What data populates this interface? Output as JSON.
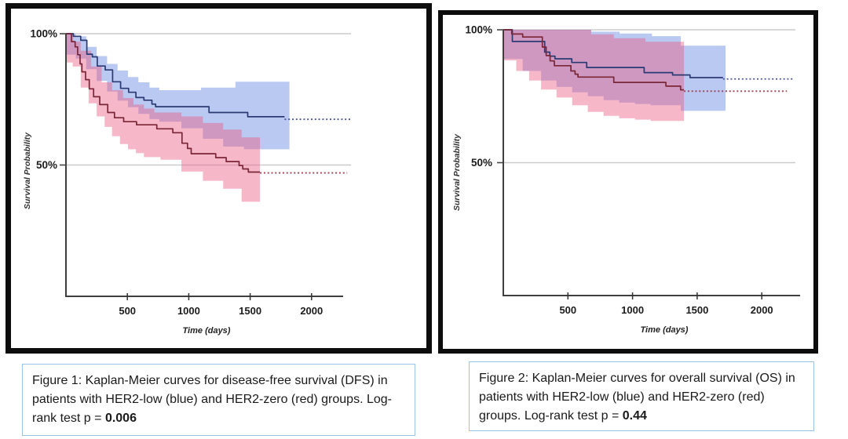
{
  "page": {
    "background": "#ffffff"
  },
  "figures": [
    {
      "id": "figure-1",
      "caption_text": "Figure 1: Kaplan-Meier curves for disease-free survival (DFS) in patients with HER2-low (blue) and HER2-zero (red) groups. Log-rank test p = ",
      "caption_p": "0.006",
      "caption_border_color": "#9dc3e6",
      "frame_border_color": "#0d0d0d"
    },
    {
      "id": "figure-2",
      "caption_text": "Figure 2: Kaplan-Meier curves for overall survival (OS) in patients with HER2-low (blue) and HER2-zero (red) groups. Log-rank test p = ",
      "caption_p": "0.44",
      "caption_border_color": "#9dc3e6",
      "frame_border_color": "#0d0d0d"
    }
  ],
  "chart_data": [
    {
      "type": "line",
      "subtype": "kaplan-meier-step",
      "name": "dfs-chart",
      "xlabel": "Time (days)",
      "ylabel": "Survival Probability",
      "x_ticks": [
        500,
        1000,
        1500,
        2000
      ],
      "y_ticks": [
        {
          "label": "100%",
          "value": 100
        },
        {
          "label": "50%",
          "value": 50
        }
      ],
      "xlim": [
        0,
        2300
      ],
      "ylim_pct": [
        0,
        100
      ],
      "grid": "horizontal-only",
      "grid_color": "#cbcbcb",
      "axis_color": "#3f3f3f",
      "series": [
        {
          "name": "HER2-low",
          "color": "#2a3a72",
          "censor_color": "#4a549a",
          "band_color": "rgba(99,135,224,0.45)",
          "steps": [
            [
              0,
              100
            ],
            [
              60,
              99
            ],
            [
              120,
              97.5
            ],
            [
              170,
              92.2
            ],
            [
              215,
              91.2
            ],
            [
              255,
              87.7
            ],
            [
              320,
              86.2
            ],
            [
              380,
              81.7
            ],
            [
              445,
              79.2
            ],
            [
              510,
              77.7
            ],
            [
              570,
              75.7
            ],
            [
              635,
              74.7
            ],
            [
              700,
              73.2
            ],
            [
              730,
              72.2
            ],
            [
              1165,
              70.0
            ],
            [
              1480,
              68.4
            ],
            [
              1780,
              68.4
            ]
          ],
          "censored": {
            "level": 67.4,
            "from": 1780,
            "to": 2315
          },
          "band": {
            "upper": [
              [
                0,
                100
              ],
              [
                80,
                99
              ],
              [
                165,
                95
              ],
              [
                250,
                91.5
              ],
              [
                335,
                88.5
              ],
              [
                420,
                86
              ],
              [
                505,
                83.5
              ],
              [
                590,
                81.5
              ],
              [
                680,
                79.5
              ],
              [
                760,
                78.5
              ],
              [
                1100,
                79.5
              ],
              [
                1380,
                81.7
              ],
              [
                1820,
                81.7
              ]
            ],
            "lower": [
              [
                0,
                92
              ],
              [
                80,
                90.5
              ],
              [
                165,
                86.5
              ],
              [
                250,
                82
              ],
              [
                335,
                78
              ],
              [
                420,
                74.5
              ],
              [
                505,
                72
              ],
              [
                590,
                69.5
              ],
              [
                680,
                67.5
              ],
              [
                760,
                66.5
              ],
              [
                940,
                64
              ],
              [
                1115,
                60
              ],
              [
                1280,
                57
              ],
              [
                1450,
                56
              ],
              [
                1820,
                56
              ]
            ]
          }
        },
        {
          "name": "HER2-zero",
          "color": "#7a2636",
          "censor_color": "#a04252",
          "band_color": "rgba(233,88,130,0.43)",
          "steps": [
            [
              0,
              100
            ],
            [
              45,
              97
            ],
            [
              75,
              95
            ],
            [
              95,
              92
            ],
            [
              115,
              88.5
            ],
            [
              130,
              85.5
            ],
            [
              160,
              82.5
            ],
            [
              190,
              79
            ],
            [
              225,
              76
            ],
            [
              275,
              73
            ],
            [
              340,
              70
            ],
            [
              395,
              68
            ],
            [
              470,
              66.5
            ],
            [
              575,
              65.3
            ],
            [
              740,
              63.8
            ],
            [
              870,
              62.3
            ],
            [
              945,
              58.3
            ],
            [
              990,
              56.3
            ],
            [
              1020,
              54.3
            ],
            [
              1220,
              52.8
            ],
            [
              1305,
              51.3
            ],
            [
              1410,
              49.8
            ],
            [
              1440,
              48.5
            ],
            [
              1485,
              47.3
            ],
            [
              1580,
              47.3
            ]
          ],
          "censored": {
            "level": 47.0,
            "from": 1580,
            "to": 2290
          },
          "band": {
            "upper": [
              [
                0,
                100
              ],
              [
                60,
                97
              ],
              [
                120,
                93.5
              ],
              [
                205,
                87.5
              ],
              [
                290,
                81.5
              ],
              [
                375,
                78.5
              ],
              [
                465,
                75.5
              ],
              [
                550,
                73
              ],
              [
                635,
                71.5
              ],
              [
                720,
                70
              ],
              [
                940,
                68.5
              ],
              [
                1115,
                66
              ],
              [
                1280,
                63.5
              ],
              [
                1430,
                60.5
              ],
              [
                1580,
                60.5
              ]
            ],
            "lower": [
              [
                0,
                89
              ],
              [
                55,
                87.5
              ],
              [
                120,
                79.5
              ],
              [
                185,
                73.5
              ],
              [
                250,
                68.5
              ],
              [
                315,
                64.5
              ],
              [
                375,
                61
              ],
              [
                440,
                58
              ],
              [
                505,
                56
              ],
              [
                570,
                54.5
              ],
              [
                635,
                53
              ],
              [
                770,
                52
              ],
              [
                940,
                47.5
              ],
              [
                1115,
                44
              ],
              [
                1280,
                41
              ],
              [
                1430,
                36
              ],
              [
                1580,
                35
              ]
            ]
          }
        }
      ]
    },
    {
      "type": "line",
      "subtype": "kaplan-meier-step",
      "name": "os-chart",
      "xlabel": "Time (days)",
      "ylabel": "Survival Probability",
      "x_ticks": [
        500,
        1000,
        1500,
        2000
      ],
      "y_ticks": [
        {
          "label": "100%",
          "value": 100
        },
        {
          "label": "50%",
          "value": 50
        }
      ],
      "xlim": [
        0,
        2300
      ],
      "ylim_pct": [
        0,
        100
      ],
      "grid": "horizontal-only",
      "grid_color": "#cbcbcb",
      "axis_color": "#3f3f3f",
      "series": [
        {
          "name": "HER2-low",
          "color": "#2a3a72",
          "censor_color": "#4a549a",
          "band_color": "rgba(99,135,224,0.45)",
          "steps": [
            [
              0,
              100
            ],
            [
              70,
              95.6
            ],
            [
              320,
              91.6
            ],
            [
              360,
              90.1
            ],
            [
              400,
              89.1
            ],
            [
              530,
              87.7
            ],
            [
              645,
              85.8
            ],
            [
              1090,
              83.9
            ],
            [
              1310,
              83.0
            ],
            [
              1445,
              82.0
            ],
            [
              1700,
              82.0
            ]
          ],
          "censored": {
            "level": 81.5,
            "from": 1700,
            "to": 2250
          },
          "band": {
            "upper": [
              [
                0,
                100
              ],
              [
                680,
                99.3
              ],
              [
                900,
                98.6
              ],
              [
                1150,
                97.6
              ],
              [
                1373,
                94.0
              ],
              [
                1720,
                94.0
              ]
            ],
            "lower": [
              [
                0,
                89
              ],
              [
                150,
                84.5
              ],
              [
                292,
                80.9
              ],
              [
                412,
                78.5
              ],
              [
                533,
                76.5
              ],
              [
                654,
                75.0
              ],
              [
                776,
                73.5
              ],
              [
                897,
                72.6
              ],
              [
                1019,
                72.1
              ],
              [
                1140,
                71.6
              ],
              [
                1373,
                69.5
              ],
              [
                1720,
                69.5
              ]
            ]
          }
        },
        {
          "name": "HER2-zero",
          "color": "#7a2636",
          "censor_color": "#a04252",
          "band_color": "rgba(233,88,130,0.43)",
          "steps": [
            [
              0,
              100
            ],
            [
              65,
              98.4
            ],
            [
              150,
              97.3
            ],
            [
              302,
              93.5
            ],
            [
              332,
              90.3
            ],
            [
              362,
              88.3
            ],
            [
              395,
              86.5
            ],
            [
              523,
              84.5
            ],
            [
              555,
              83.3
            ],
            [
              578,
              82.2
            ],
            [
              855,
              80.2
            ],
            [
              1258,
              78.8
            ],
            [
              1372,
              77.4
            ],
            [
              1398,
              77.4
            ]
          ],
          "censored": {
            "level": 76.9,
            "from": 1398,
            "to": 2195
          },
          "band": {
            "upper": [
              [
                0,
                100
              ],
              [
                680,
                98.3
              ],
              [
                855,
                96.8
              ],
              [
                1100,
                95.5
              ],
              [
                1398,
                95.5
              ]
            ],
            "lower": [
              [
                0,
                88.5
              ],
              [
                100,
                84.5
              ],
              [
                200,
                80.9
              ],
              [
                292,
                77.5
              ],
              [
                412,
                74.5
              ],
              [
                533,
                71.6
              ],
              [
                654,
                69.1
              ],
              [
                776,
                67.6
              ],
              [
                897,
                66.7
              ],
              [
                1019,
                66.2
              ],
              [
                1140,
                65.7
              ],
              [
                1398,
                65.0
              ]
            ]
          }
        }
      ]
    }
  ]
}
